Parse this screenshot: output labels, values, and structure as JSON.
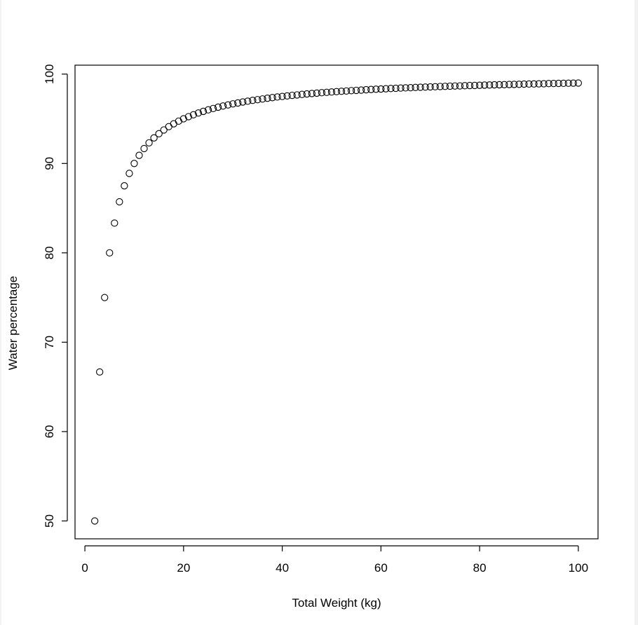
{
  "chart_data": {
    "type": "scatter",
    "title": "",
    "xlabel": "Total Weight (kg)",
    "ylabel": "Water percentage",
    "xlim": [
      -2,
      104
    ],
    "ylim": [
      48,
      101
    ],
    "xticks": [
      0,
      20,
      40,
      60,
      80,
      100
    ],
    "yticks": [
      50,
      60,
      70,
      80,
      90,
      100
    ],
    "grid": false,
    "legend": "none",
    "marker": "open-circle",
    "series": [
      {
        "x": [
          2,
          3,
          4,
          5,
          6,
          7,
          8,
          9,
          10,
          11,
          12,
          13,
          14,
          15,
          16,
          17,
          18,
          19,
          20,
          21,
          22,
          23,
          24,
          25,
          26,
          27,
          28,
          29,
          30,
          31,
          32,
          33,
          34,
          35,
          36,
          37,
          38,
          39,
          40,
          41,
          42,
          43,
          44,
          45,
          46,
          47,
          48,
          49,
          50,
          51,
          52,
          53,
          54,
          55,
          56,
          57,
          58,
          59,
          60,
          61,
          62,
          63,
          64,
          65,
          66,
          67,
          68,
          69,
          70,
          71,
          72,
          73,
          74,
          75,
          76,
          77,
          78,
          79,
          80,
          81,
          82,
          83,
          84,
          85,
          86,
          87,
          88,
          89,
          90,
          91,
          92,
          93,
          94,
          95,
          96,
          97,
          98,
          99,
          100
        ],
        "y": [
          50.0,
          66.67,
          75.0,
          80.0,
          83.33,
          85.71,
          87.5,
          88.89,
          90.0,
          90.91,
          91.67,
          92.31,
          92.86,
          93.33,
          93.75,
          94.12,
          94.44,
          94.74,
          95.0,
          95.24,
          95.45,
          95.65,
          95.83,
          96.0,
          96.15,
          96.3,
          96.43,
          96.55,
          96.67,
          96.77,
          96.88,
          96.97,
          97.06,
          97.14,
          97.22,
          97.3,
          97.37,
          97.44,
          97.5,
          97.56,
          97.62,
          97.67,
          97.73,
          97.78,
          97.83,
          97.87,
          97.92,
          97.96,
          98.0,
          98.04,
          98.08,
          98.11,
          98.15,
          98.18,
          98.21,
          98.25,
          98.28,
          98.31,
          98.33,
          98.36,
          98.39,
          98.41,
          98.44,
          98.46,
          98.48,
          98.51,
          98.53,
          98.55,
          98.57,
          98.59,
          98.61,
          98.63,
          98.65,
          98.67,
          98.68,
          98.7,
          98.72,
          98.73,
          98.75,
          98.77,
          98.78,
          98.8,
          98.81,
          98.82,
          98.84,
          98.85,
          98.86,
          98.88,
          98.89,
          98.9,
          98.91,
          98.92,
          98.94,
          98.95,
          98.96,
          98.97,
          98.98,
          98.99,
          99.0
        ]
      }
    ]
  }
}
